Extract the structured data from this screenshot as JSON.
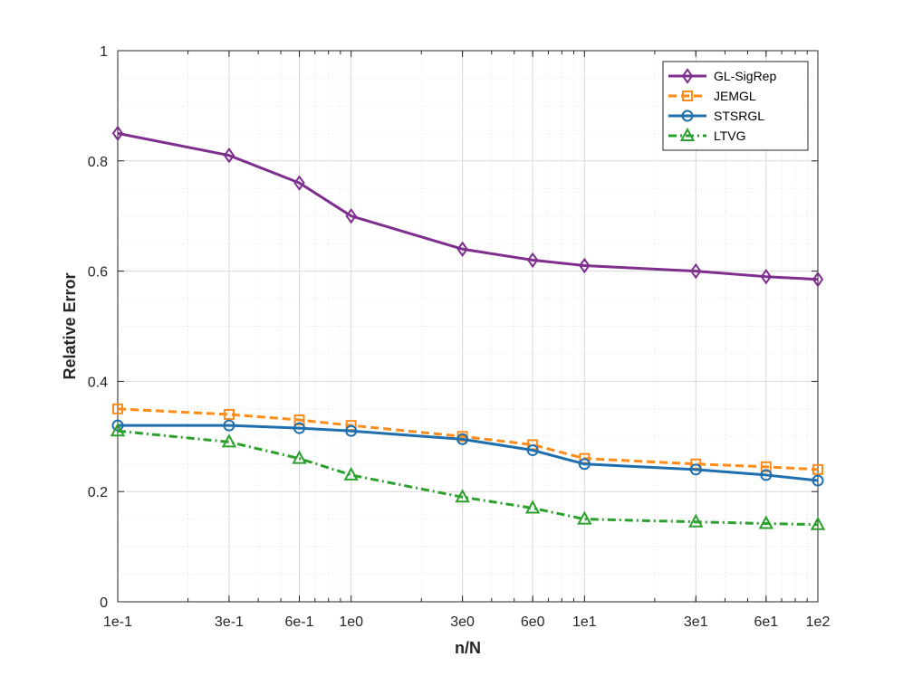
{
  "chart_data": {
    "type": "line",
    "xscale": "log",
    "xlabel": "n/N",
    "ylabel": "Relative Error",
    "ylim": [
      0,
      1
    ],
    "xlim": [
      0.1,
      100
    ],
    "grid": true,
    "minor_grid": true,
    "legend_position": "top-right",
    "x": [
      0.1,
      0.3,
      0.6,
      1,
      3,
      6,
      10,
      30,
      60,
      100
    ],
    "x_tick_values": [
      0.1,
      0.3,
      0.6,
      1,
      3,
      6,
      10,
      30,
      60,
      100
    ],
    "x_tick_labels": [
      "1e-1",
      "3e-1",
      "6e-1",
      "1e0",
      "3e0",
      "6e0",
      "1e1",
      "3e1",
      "6e1",
      "1e2"
    ],
    "y_tick_values": [
      0,
      0.2,
      0.4,
      0.6,
      0.8,
      1
    ],
    "y_tick_labels": [
      "0",
      "0.2",
      "0.4",
      "0.6",
      "0.8",
      "1"
    ],
    "series": [
      {
        "name": "GL-SigRep",
        "color": "#7E2F8E",
        "line": "solid",
        "marker": "diamond",
        "values": [
          0.85,
          0.81,
          0.76,
          0.7,
          0.64,
          0.62,
          0.61,
          0.6,
          0.59,
          0.585
        ]
      },
      {
        "name": "JEMGL",
        "color": "#FF8C1A",
        "line": "dashed",
        "marker": "square",
        "values": [
          0.35,
          0.34,
          0.33,
          0.32,
          0.3,
          0.285,
          0.26,
          0.25,
          0.245,
          0.24
        ]
      },
      {
        "name": "STSRGL",
        "color": "#1F6FAE",
        "line": "solid",
        "marker": "circle",
        "values": [
          0.32,
          0.32,
          0.315,
          0.31,
          0.295,
          0.275,
          0.25,
          0.24,
          0.23,
          0.22
        ]
      },
      {
        "name": "LTVG",
        "color": "#2CA02C",
        "line": "dashdot",
        "marker": "triangle",
        "values": [
          0.31,
          0.29,
          0.26,
          0.23,
          0.19,
          0.17,
          0.15,
          0.145,
          0.142,
          0.14
        ]
      }
    ]
  }
}
